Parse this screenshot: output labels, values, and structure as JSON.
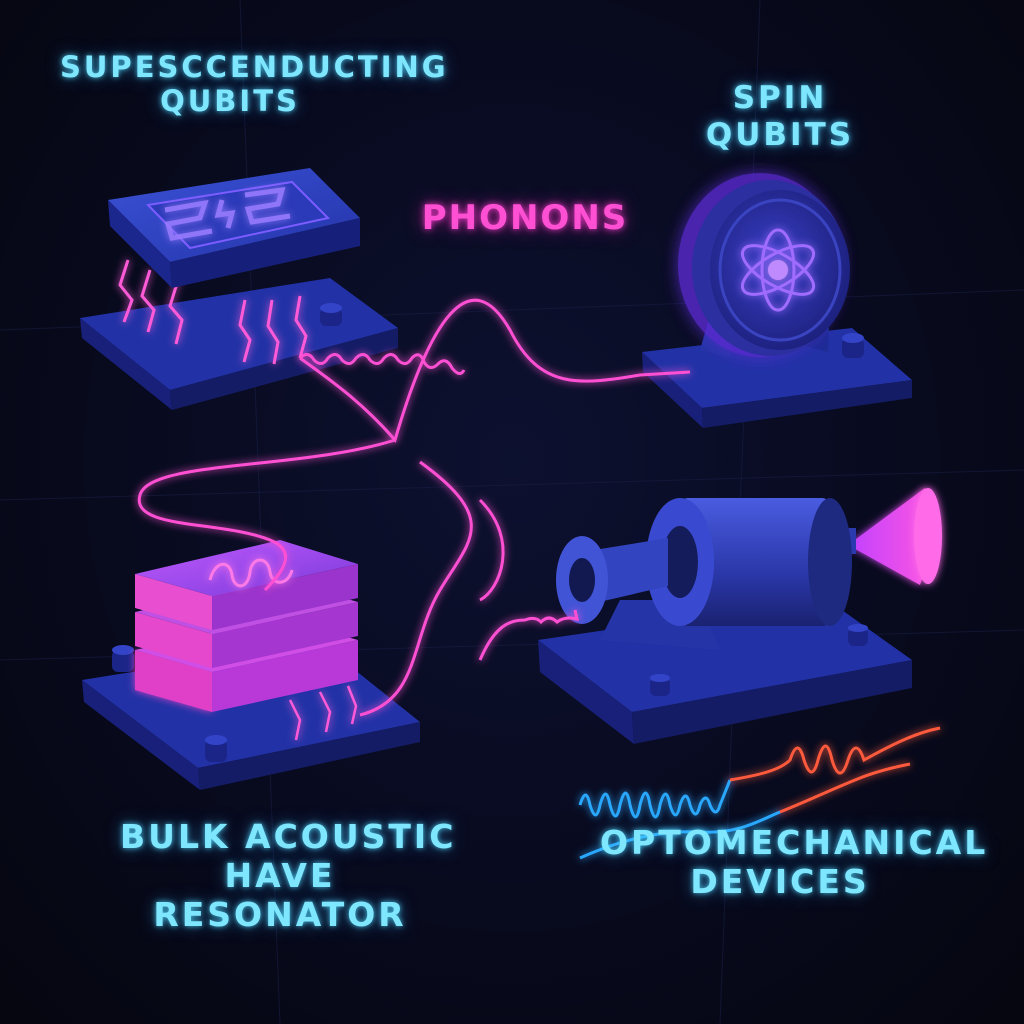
{
  "labels": {
    "superconducting": [
      "SUPESCCENDUCTING",
      "QUBITS"
    ],
    "spin": [
      "SPIN",
      "QUBITS"
    ],
    "phonons": "PHONONS",
    "bulk": [
      "BULK ACOUSTIC",
      "HAVE",
      "RESONATOR"
    ],
    "optomechanical": [
      "OPTOMECHANICAL",
      "DEVICES"
    ]
  },
  "colors": {
    "background": "#080a1e",
    "label_cyan": "#7fe6ff",
    "phonon_magenta": "#ff4fd2",
    "device_blue": "#2a3fb8",
    "device_violet": "#6a3ae0",
    "resonator_pink": "#e040d8",
    "wave_blue": "#2aa8ff",
    "wave_red": "#ff5a3c"
  },
  "icons": [
    "superconducting-chip-icon",
    "spin-qubit-disc-icon",
    "atom-icon",
    "bulk-resonator-stack-icon",
    "optomechanical-cavity-icon"
  ]
}
